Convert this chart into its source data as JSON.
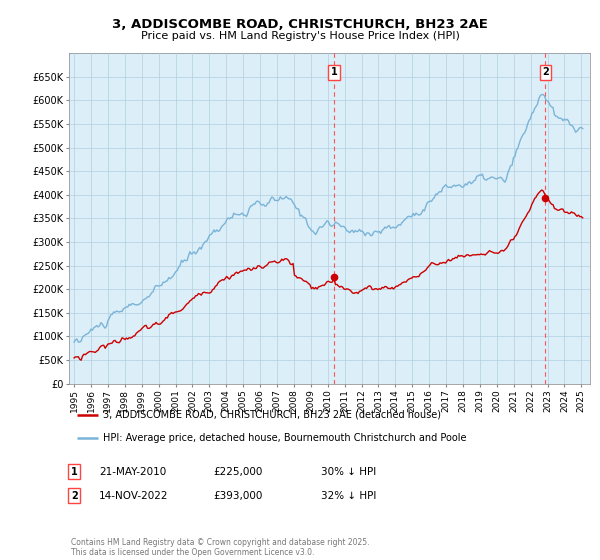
{
  "title": "3, ADDISCOMBE ROAD, CHRISTCHURCH, BH23 2AE",
  "subtitle": "Price paid vs. HM Land Registry's House Price Index (HPI)",
  "ylim": [
    0,
    700000
  ],
  "yticks": [
    0,
    50000,
    100000,
    150000,
    200000,
    250000,
    300000,
    350000,
    400000,
    450000,
    500000,
    550000,
    600000,
    650000
  ],
  "ytick_labels": [
    "£0",
    "£50K",
    "£100K",
    "£150K",
    "£200K",
    "£250K",
    "£300K",
    "£350K",
    "£400K",
    "£450K",
    "£500K",
    "£550K",
    "£600K",
    "£650K"
  ],
  "hpi_color": "#7ab4d8",
  "hpi_fill_color": "#dceef8",
  "price_color": "#cc0000",
  "marker_color": "#cc0000",
  "vline_color": "#ff4444",
  "t1_year": 2010.38,
  "t1_price": 225000,
  "t2_year": 2022.88,
  "t2_price": 393000,
  "legend_property": "3, ADDISCOMBE ROAD, CHRISTCHURCH, BH23 2AE (detached house)",
  "legend_hpi": "HPI: Average price, detached house, Bournemouth Christchurch and Poole",
  "t1_date": "21-MAY-2010",
  "t1_pct": "30% ↓ HPI",
  "t2_date": "14-NOV-2022",
  "t2_pct": "32% ↓ HPI",
  "footer": "Contains HM Land Registry data © Crown copyright and database right 2025.\nThis data is licensed under the Open Government Licence v3.0.",
  "background_color": "#ffffff",
  "chart_bg_color": "#dceef8",
  "grid_color": "#b0cfe0"
}
